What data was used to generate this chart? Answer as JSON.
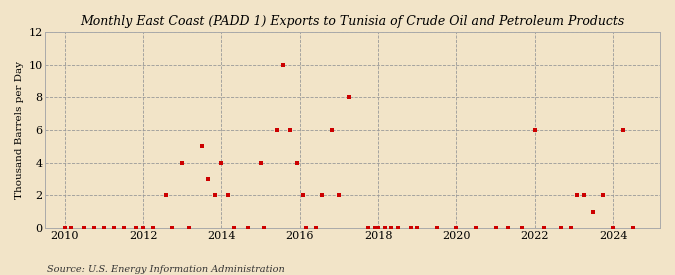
{
  "title": "Monthly East Coast (PADD 1) Exports to Tunisia of Crude Oil and Petroleum Products",
  "ylabel": "Thousand Barrels per Day",
  "source": "Source: U.S. Energy Information Administration",
  "background_color": "#f2e4c8",
  "dot_color": "#cc0000",
  "xlim": [
    2009.5,
    2025.2
  ],
  "ylim": [
    0,
    12
  ],
  "yticks": [
    0,
    2,
    4,
    6,
    8,
    10,
    12
  ],
  "xticks": [
    2010,
    2012,
    2014,
    2016,
    2018,
    2020,
    2022,
    2024
  ],
  "data_points": [
    [
      2010.0,
      0
    ],
    [
      2010.17,
      0
    ],
    [
      2010.5,
      0
    ],
    [
      2010.75,
      0
    ],
    [
      2011.0,
      0
    ],
    [
      2011.25,
      0
    ],
    [
      2011.5,
      0
    ],
    [
      2011.83,
      0
    ],
    [
      2012.0,
      0
    ],
    [
      2012.25,
      0
    ],
    [
      2012.58,
      2
    ],
    [
      2012.75,
      0
    ],
    [
      2013.0,
      4
    ],
    [
      2013.17,
      0
    ],
    [
      2013.5,
      5
    ],
    [
      2013.67,
      3
    ],
    [
      2013.83,
      2
    ],
    [
      2014.0,
      4
    ],
    [
      2014.17,
      2
    ],
    [
      2014.33,
      0
    ],
    [
      2014.67,
      0
    ],
    [
      2015.0,
      4
    ],
    [
      2015.08,
      0
    ],
    [
      2015.42,
      6
    ],
    [
      2015.58,
      10
    ],
    [
      2015.75,
      6
    ],
    [
      2015.92,
      4
    ],
    [
      2016.08,
      2
    ],
    [
      2016.17,
      0
    ],
    [
      2016.42,
      0
    ],
    [
      2016.58,
      2
    ],
    [
      2016.83,
      6
    ],
    [
      2017.0,
      2
    ],
    [
      2017.25,
      8
    ],
    [
      2017.75,
      0
    ],
    [
      2017.92,
      0
    ],
    [
      2018.0,
      0
    ],
    [
      2018.17,
      0
    ],
    [
      2018.33,
      0
    ],
    [
      2018.5,
      0
    ],
    [
      2018.83,
      0
    ],
    [
      2019.0,
      0
    ],
    [
      2019.5,
      0
    ],
    [
      2020.0,
      0
    ],
    [
      2020.5,
      0
    ],
    [
      2021.0,
      0
    ],
    [
      2021.33,
      0
    ],
    [
      2021.67,
      0
    ],
    [
      2022.0,
      6
    ],
    [
      2022.25,
      0
    ],
    [
      2022.67,
      0
    ],
    [
      2022.92,
      0
    ],
    [
      2023.08,
      2
    ],
    [
      2023.25,
      2
    ],
    [
      2023.5,
      1
    ],
    [
      2023.75,
      2
    ],
    [
      2024.0,
      0
    ],
    [
      2024.25,
      6
    ],
    [
      2024.5,
      0
    ]
  ]
}
